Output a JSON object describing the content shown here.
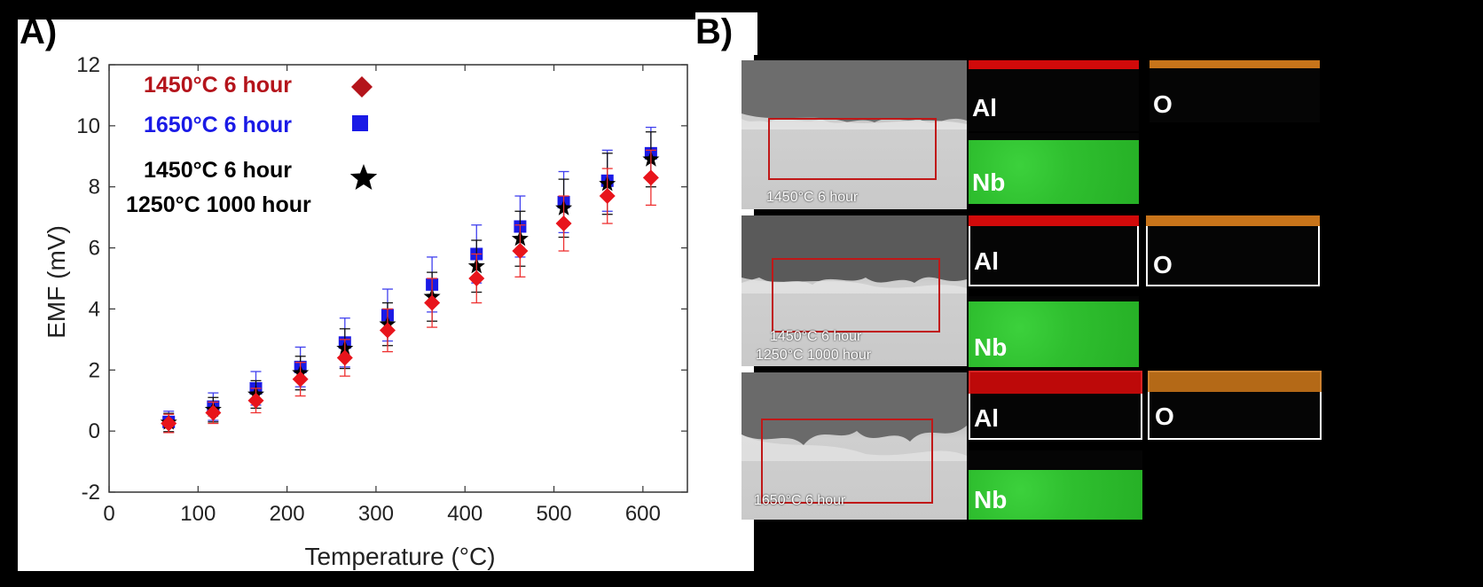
{
  "panels": {
    "a_label": "A)",
    "b_label": "B)"
  },
  "legend": {
    "entry1": "1450°C 6 hour",
    "entry2": "1650°C 6 hour",
    "entry3_line1": "1450°C 6 hour",
    "entry3_line2": "1250°C 1000 hour"
  },
  "sem": {
    "caption1": "1450°C 6 hour",
    "caption2_line1": "1450°C 6 hour",
    "caption2_line2": "1250°C 1000 hour",
    "caption3": "1650°C 6 hour",
    "map_al": "Al",
    "map_o": "O",
    "map_nb": "Nb"
  },
  "chart_data": {
    "type": "scatter",
    "xlabel": "Temperature (°C)",
    "ylabel": "EMF (mV)",
    "xlim": [
      0,
      650
    ],
    "ylim": [
      -2,
      12
    ],
    "xticks": [
      0,
      100,
      200,
      300,
      400,
      500,
      600
    ],
    "yticks": [
      -2,
      0,
      2,
      4,
      6,
      8,
      10,
      12
    ],
    "grid": false,
    "legend_position": "top-left",
    "series": [
      {
        "name": "1450°C 6 hour",
        "marker": "diamond",
        "color": "#e8141b",
        "x": [
          67,
          117,
          165,
          215,
          265,
          313,
          363,
          413,
          462,
          511,
          560,
          609
        ],
        "y": [
          0.25,
          0.6,
          1.0,
          1.7,
          2.4,
          3.3,
          4.2,
          5.0,
          5.9,
          6.8,
          7.7,
          8.3
        ],
        "err": [
          0.3,
          0.35,
          0.4,
          0.55,
          0.6,
          0.7,
          0.8,
          0.8,
          0.85,
          0.9,
          0.9,
          0.9
        ]
      },
      {
        "name": "1650°C 6 hour",
        "marker": "square",
        "color": "#1a1ae6",
        "x": [
          67,
          117,
          165,
          215,
          265,
          313,
          363,
          413,
          462,
          511,
          560,
          609
        ],
        "y": [
          0.3,
          0.8,
          1.4,
          2.1,
          2.9,
          3.8,
          4.8,
          5.8,
          6.7,
          7.5,
          8.2,
          9.1
        ],
        "err": [
          0.35,
          0.45,
          0.55,
          0.65,
          0.8,
          0.85,
          0.9,
          0.95,
          1.0,
          1.0,
          1.0,
          0.85
        ]
      },
      {
        "name": "1450°C 6 hour / 1250°C 1000 hour",
        "marker": "star",
        "color": "#000000",
        "x": [
          67,
          117,
          165,
          215,
          265,
          313,
          363,
          413,
          462,
          511,
          560,
          609
        ],
        "y": [
          0.28,
          0.7,
          1.2,
          1.9,
          2.7,
          3.5,
          4.4,
          5.4,
          6.3,
          7.3,
          8.1,
          8.9
        ],
        "err": [
          0.3,
          0.4,
          0.45,
          0.55,
          0.65,
          0.7,
          0.8,
          0.85,
          0.9,
          0.95,
          1.0,
          0.9
        ]
      }
    ]
  }
}
